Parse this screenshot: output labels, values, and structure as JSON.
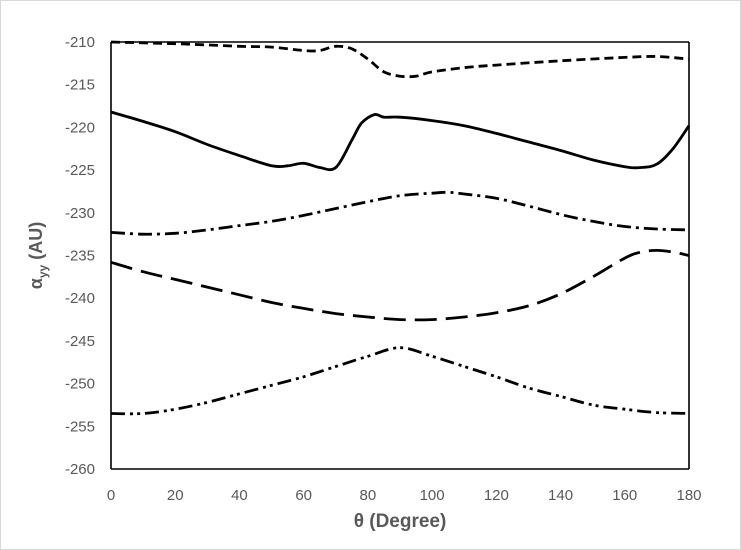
{
  "chart_data": {
    "type": "line",
    "title": "",
    "xlabel": "θ (Degree)",
    "ylabel": {
      "base": "α",
      "sub": "yy",
      "unit": " (AU)"
    },
    "xlim": [
      0,
      180
    ],
    "ylim": [
      -260,
      -210
    ],
    "xticks": [
      0,
      20,
      40,
      60,
      80,
      100,
      120,
      140,
      160,
      180
    ],
    "yticks": [
      -210,
      -215,
      -220,
      -225,
      -230,
      -235,
      -240,
      -245,
      -250,
      -255,
      -260
    ],
    "grid": false,
    "legend": "none",
    "series": [
      {
        "style": "short-dash",
        "color": "#000000",
        "x": [
          0,
          20,
          40,
          50,
          60,
          65,
          70,
          75,
          80,
          85,
          90,
          95,
          100,
          110,
          120,
          140,
          160,
          170,
          180
        ],
        "y": [
          -210.0,
          -210.2,
          -210.5,
          -210.6,
          -211.0,
          -211.0,
          -210.5,
          -210.8,
          -212.0,
          -213.5,
          -214.0,
          -214.0,
          -213.5,
          -213.0,
          -212.7,
          -212.2,
          -211.8,
          -211.7,
          -212.0
        ]
      },
      {
        "style": "solid",
        "color": "#000000",
        "x": [
          0,
          10,
          20,
          30,
          40,
          50,
          55,
          60,
          65,
          70,
          75,
          78,
          82,
          85,
          90,
          100,
          110,
          120,
          130,
          140,
          150,
          160,
          165,
          170,
          175,
          180
        ],
        "y": [
          -218.2,
          -219.3,
          -220.5,
          -222.0,
          -223.3,
          -224.5,
          -224.5,
          -224.2,
          -224.7,
          -224.7,
          -221.5,
          -219.5,
          -218.5,
          -218.8,
          -218.8,
          -219.2,
          -219.8,
          -220.7,
          -221.7,
          -222.7,
          -223.8,
          -224.6,
          -224.7,
          -224.3,
          -222.5,
          -219.8
        ]
      },
      {
        "style": "dash-dot",
        "color": "#000000",
        "x": [
          0,
          10,
          20,
          30,
          40,
          50,
          60,
          70,
          80,
          90,
          100,
          105,
          110,
          120,
          130,
          140,
          150,
          160,
          170,
          180
        ],
        "y": [
          -232.3,
          -232.5,
          -232.4,
          -232.0,
          -231.5,
          -231.0,
          -230.3,
          -229.5,
          -228.7,
          -228.0,
          -227.7,
          -227.6,
          -227.8,
          -228.3,
          -229.2,
          -230.2,
          -231.0,
          -231.6,
          -231.9,
          -232.0
        ]
      },
      {
        "style": "long-dash",
        "color": "#000000",
        "x": [
          0,
          10,
          20,
          30,
          40,
          50,
          60,
          70,
          80,
          90,
          100,
          110,
          120,
          130,
          140,
          150,
          160,
          165,
          170,
          175,
          180
        ],
        "y": [
          -235.8,
          -236.9,
          -237.8,
          -238.7,
          -239.6,
          -240.5,
          -241.2,
          -241.8,
          -242.2,
          -242.5,
          -242.5,
          -242.2,
          -241.7,
          -240.9,
          -239.5,
          -237.5,
          -235.3,
          -234.6,
          -234.4,
          -234.6,
          -235.0
        ]
      },
      {
        "style": "dash-dot-dot",
        "color": "#000000",
        "x": [
          0,
          10,
          20,
          30,
          40,
          50,
          60,
          70,
          80,
          90,
          100,
          110,
          120,
          130,
          140,
          150,
          160,
          170,
          180
        ],
        "y": [
          -253.5,
          -253.5,
          -253.0,
          -252.2,
          -251.2,
          -250.2,
          -249.2,
          -248.0,
          -246.8,
          -245.8,
          -246.8,
          -248.0,
          -249.2,
          -250.5,
          -251.5,
          -252.5,
          -253.0,
          -253.4,
          -253.5
        ]
      }
    ]
  }
}
